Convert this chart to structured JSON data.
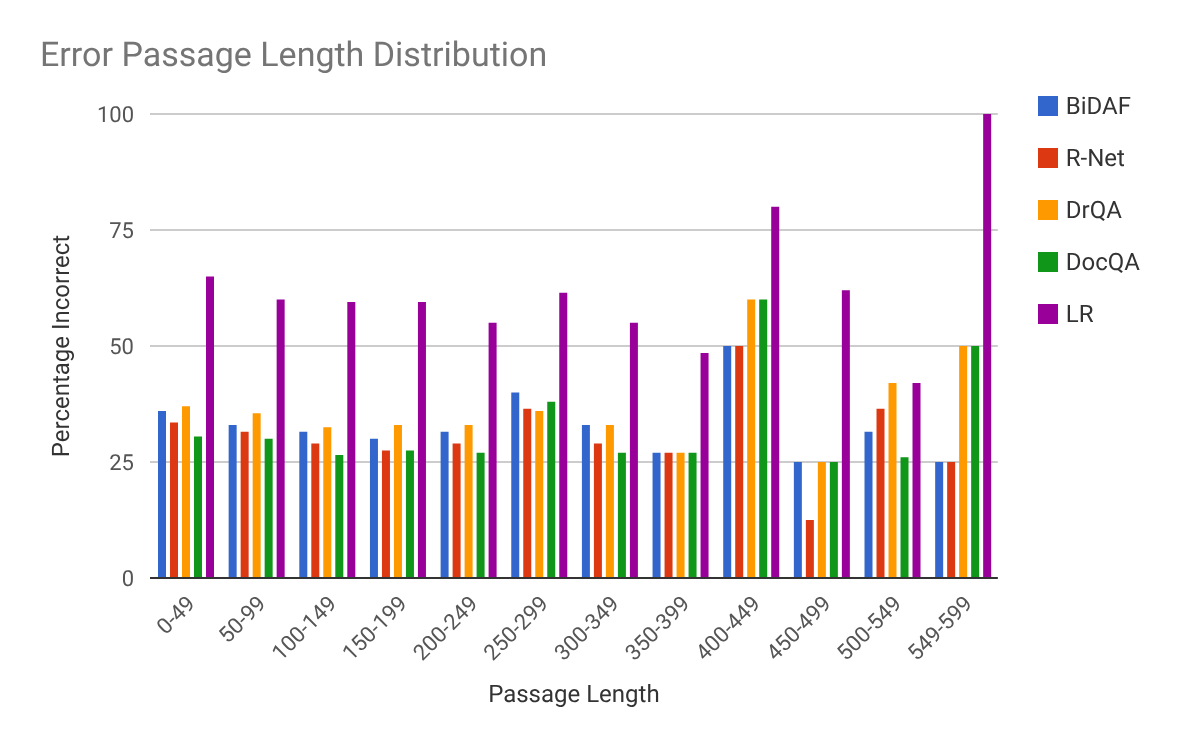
{
  "chart_data": {
    "type": "bar",
    "title": "Error Passage Length Distribution",
    "xlabel": "Passage Length",
    "ylabel": "Percentage Incorrect",
    "categories": [
      "0-49",
      "50-99",
      "100-149",
      "150-199",
      "200-249",
      "250-299",
      "300-349",
      "350-399",
      "400-449",
      "450-499",
      "500-549",
      "549-599"
    ],
    "series": [
      {
        "name": "BiDAF",
        "color": "#3366cc",
        "values": [
          36,
          33,
          31.5,
          30,
          31.5,
          40,
          33,
          27,
          50,
          25,
          31.5,
          25
        ]
      },
      {
        "name": "R-Net",
        "color": "#dc3912",
        "values": [
          33.5,
          31.5,
          29,
          27.5,
          29,
          36.5,
          29,
          27,
          50,
          12.5,
          36.5,
          25
        ]
      },
      {
        "name": "DrQA",
        "color": "#ff9900",
        "values": [
          37,
          35.5,
          32.5,
          33,
          33,
          36,
          33,
          27,
          60,
          25,
          42,
          50
        ]
      },
      {
        "name": "DocQA",
        "color": "#109618",
        "values": [
          30.5,
          30,
          26.5,
          27.5,
          27,
          38,
          27,
          27,
          60,
          25,
          26,
          50
        ]
      },
      {
        "name": "LR",
        "color": "#990099",
        "values": [
          65,
          60,
          59.5,
          59.5,
          55,
          61.5,
          55,
          48.5,
          80,
          62,
          42,
          100
        ]
      }
    ],
    "ylim": [
      0,
      100
    ],
    "yticks": [
      0,
      25,
      50,
      75,
      100
    ],
    "grid": "y",
    "legend": "right"
  }
}
